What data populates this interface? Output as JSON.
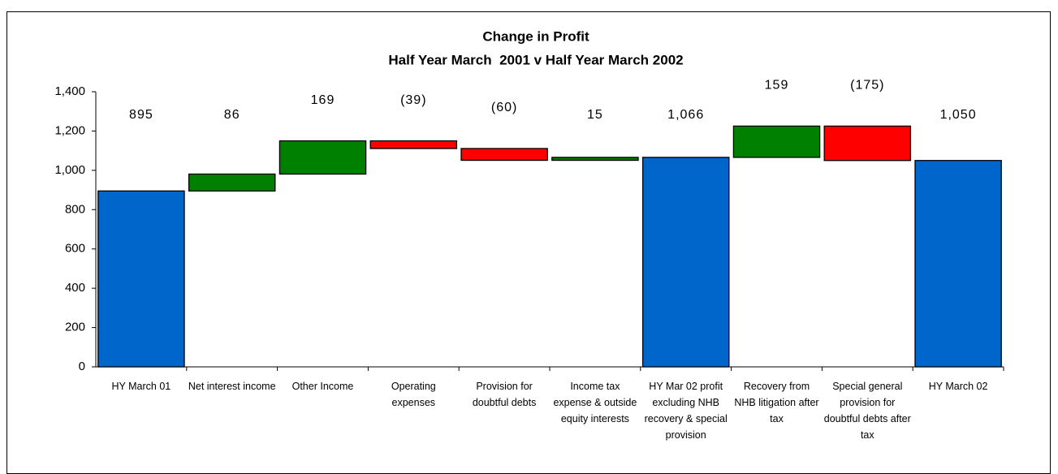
{
  "chart_data": {
    "type": "waterfall",
    "title": "Change in Profit",
    "subtitle": "Half Year March  2001 v Half Year March 2002",
    "categories": [
      "HY March 01",
      "Net interest income",
      "Other Income",
      "Operating expenses",
      "Provision for doubtful debts",
      "Income tax expense & outside equity interests",
      "HY Mar 02 profit excluding NHB recovery & special provision",
      "Recovery from NHB litigation after tax",
      "Special general provision for doubtful debts after tax",
      "HY March 02"
    ],
    "values": [
      895,
      86,
      169,
      -39,
      -60,
      15,
      1066,
      159,
      -175,
      1050
    ],
    "value_labels": [
      "895",
      "86",
      "169",
      "(39)",
      "(60)",
      "15",
      "1,066",
      "159",
      "(175)",
      "1,050"
    ],
    "measure": [
      "absolute",
      "relative",
      "relative",
      "relative",
      "relative",
      "relative",
      "absolute",
      "relative",
      "relative",
      "absolute"
    ],
    "total_color": "#0066cc",
    "increase_color": "#008000",
    "decrease_color": "#ff0000",
    "ylim": [
      0,
      1400
    ],
    "yticks": [
      0,
      200,
      400,
      600,
      800,
      {
        "value": 1000,
        "label": "1,000"
      },
      {
        "value": 1200,
        "label": "1,200"
      },
      {
        "value": 1400,
        "label": "1,400"
      }
    ],
    "grid": false
  }
}
